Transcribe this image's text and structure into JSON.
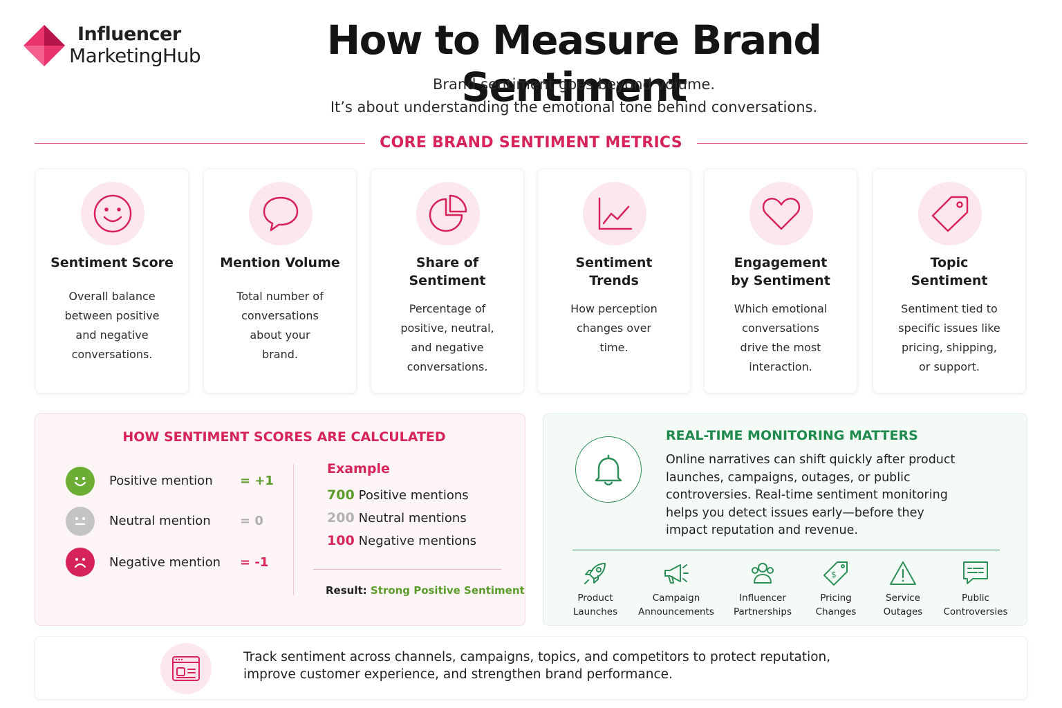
{
  "brand": {
    "line1": "Influencer",
    "line2": "MarketingHub",
    "logo_icon": "pink-diamond-logo-icon"
  },
  "header": {
    "title": "How to Measure Brand Sentiment",
    "subtitle_line1": "Brand sentiment goes beyond volume.",
    "subtitle_line2": "It’s about understanding the emotional tone behind conversations."
  },
  "metrics_section": {
    "title": "CORE BRAND SENTIMENT METRICS",
    "cards": [
      {
        "icon": "smiley-icon",
        "title_l1": "Sentiment Score",
        "title_l2": "",
        "desc": [
          "Overall balance",
          "between positive",
          "and negative",
          "conversations."
        ]
      },
      {
        "icon": "speech-bubble-icon",
        "title_l1": "Mention Volume",
        "title_l2": "",
        "desc": [
          "Total number of",
          "conversations",
          "about your",
          "brand."
        ]
      },
      {
        "icon": "pie-chart-icon",
        "title_l1": "Share of",
        "title_l2": "Sentiment",
        "desc": [
          "Percentage of",
          "positive, neutral,",
          "and negative",
          "conversations."
        ]
      },
      {
        "icon": "line-chart-icon",
        "title_l1": "Sentiment",
        "title_l2": "Trends",
        "desc": [
          "How perception",
          "changes over",
          "time."
        ]
      },
      {
        "icon": "heart-icon",
        "title_l1": "Engagement",
        "title_l2": "by Sentiment",
        "desc": [
          "Which emotional",
          "conversations",
          "drive the most",
          "interaction."
        ]
      },
      {
        "icon": "tag-icon",
        "title_l1": "Topic",
        "title_l2": "Sentiment",
        "desc": [
          "Sentiment tied to",
          "specific issues like",
          "pricing, shipping,",
          "or support."
        ]
      }
    ]
  },
  "calculation": {
    "title": "HOW SENTIMENT SCORES ARE CALCULATED",
    "scores": [
      {
        "label": "Positive mention",
        "value": "= +1",
        "color": "#5b9c2a"
      },
      {
        "label": "Neutral mention",
        "value": "= 0",
        "color": "#b0b0b0"
      },
      {
        "label": "Negative mention",
        "value": "= -1",
        "color": "#d6245a"
      }
    ],
    "example": {
      "title": "Example",
      "rows": [
        {
          "num": "700",
          "label": "Positive mentions",
          "color": "#5b9c2a"
        },
        {
          "num": "200",
          "label": "Neutral mentions",
          "color": "#b0b0b0"
        },
        {
          "num": "100",
          "label": "Negative mentions",
          "color": "#d6245a"
        }
      ],
      "result_label": "Result:",
      "result_value": "Strong Positive Sentiment"
    }
  },
  "monitoring": {
    "title": "REAL-TIME MONITORING MATTERS",
    "body_lines": [
      "Online narratives can shift quickly after product",
      "launches, campaigns, outages, or public",
      "controversies. Real-time sentiment monitoring",
      "helps you detect issues early—before they",
      "impact reputation and revenue."
    ],
    "triggers": [
      {
        "icon": "rocket-icon",
        "l1": "Product",
        "l2": "Launches"
      },
      {
        "icon": "megaphone-icon",
        "l1": "Campaign",
        "l2": "Announcements"
      },
      {
        "icon": "people-icon",
        "l1": "Influencer",
        "l2": "Partnerships"
      },
      {
        "icon": "price-tag-icon",
        "l1": "Pricing",
        "l2": "Changes"
      },
      {
        "icon": "warning-icon",
        "l1": "Service",
        "l2": "Outages"
      },
      {
        "icon": "chat-icon",
        "l1": "Public",
        "l2": "Controversies"
      }
    ]
  },
  "footer": {
    "icon": "dashboard-window-icon",
    "line1": "Track sentiment across channels, campaigns, topics, and competitors to protect reputation,",
    "line2": "improve customer experience, and strengthen brand performance."
  },
  "colors": {
    "accent_pink": "#d6245a",
    "accent_green": "#1f8a4c",
    "positive": "#5b9c2a",
    "neutral": "#b0b0b0"
  }
}
